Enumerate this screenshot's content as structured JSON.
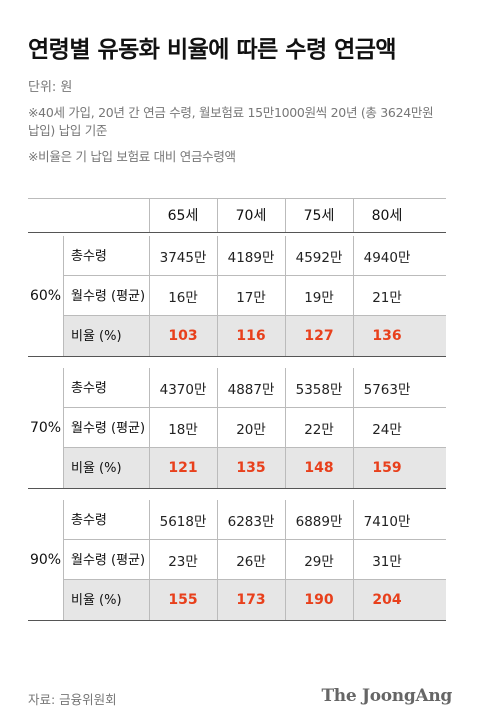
{
  "title": "연령별 유동화 비율에 따른 수령 연금액",
  "unit": "단위: 원",
  "notes": [
    "※40세 가입, 20년 간 연금 수령, 월보험료 15만1000원씩 20년 (총 3624만원 납입) 납입 기준",
    "※비율은 기 납입 보험료 대비 연금수령액"
  ],
  "columns": [
    "65세",
    "70세",
    "75세",
    "80세"
  ],
  "groups": [
    {
      "label": "60%",
      "rows": [
        {
          "label": "총수령",
          "values": [
            "3745만",
            "4189만",
            "4592만",
            "4940만"
          ]
        },
        {
          "label": "월수령 (평균)",
          "values": [
            "16만",
            "17만",
            "19만",
            "21만"
          ]
        },
        {
          "label": "비율 (%)",
          "values": [
            "103",
            "116",
            "127",
            "136"
          ]
        }
      ]
    },
    {
      "label": "70%",
      "rows": [
        {
          "label": "총수령",
          "values": [
            "4370만",
            "4887만",
            "5358만",
            "5763만"
          ]
        },
        {
          "label": "월수령 (평균)",
          "values": [
            "18만",
            "20만",
            "22만",
            "24만"
          ]
        },
        {
          "label": "비율 (%)",
          "values": [
            "121",
            "135",
            "148",
            "159"
          ]
        }
      ]
    },
    {
      "label": "90%",
      "rows": [
        {
          "label": "총수령",
          "values": [
            "5618만",
            "6283만",
            "6889만",
            "7410만"
          ]
        },
        {
          "label": "월수령 (평균)",
          "values": [
            "23만",
            "26만",
            "29만",
            "31만"
          ]
        },
        {
          "label": "비율 (%)",
          "values": [
            "155",
            "173",
            "190",
            "204"
          ]
        }
      ]
    }
  ],
  "source": "자료: 금융위원회",
  "logo": "The JoongAng",
  "colors": {
    "highlight": "#e8401c",
    "shade": "#e6e6e6"
  }
}
